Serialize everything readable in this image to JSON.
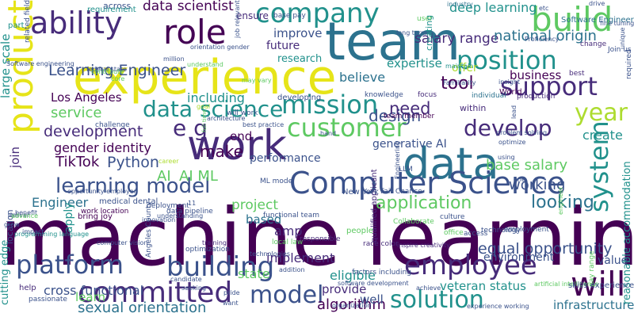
{
  "colors": {
    "background": "#ffffff",
    "palette": [
      "#440154",
      "#472c7a",
      "#3b528b",
      "#2c728e",
      "#21918c",
      "#28ae80",
      "#5ec962",
      "#addc30",
      "#e6e419"
    ]
  },
  "words": [
    {
      "text": "machine learning",
      "color": "#440154"
    },
    {
      "text": "experience",
      "color": "#e6e419"
    },
    {
      "text": "team",
      "color": "#2c728e"
    },
    {
      "text": "work",
      "color": "#472c7a"
    },
    {
      "text": "data",
      "color": "#2c728e"
    },
    {
      "text": "Computer Science",
      "color": "#3b528b"
    },
    {
      "text": "company",
      "color": "#21918c"
    },
    {
      "text": "product",
      "color": "#e6e419"
    },
    {
      "text": "build",
      "color": "#5ec962"
    },
    {
      "text": "customer",
      "color": "#5ec962"
    },
    {
      "text": "position",
      "color": "#21918c"
    },
    {
      "text": "ability",
      "color": "#472c7a"
    },
    {
      "text": "role",
      "color": "#440154"
    },
    {
      "text": "mission",
      "color": "#21918c"
    },
    {
      "text": "support",
      "color": "#472c7a"
    },
    {
      "text": "system",
      "color": "#21918c"
    },
    {
      "text": "will",
      "color": "#440154"
    },
    {
      "text": "building",
      "color": "#3b528b"
    },
    {
      "text": "employee",
      "color": "#472c7a"
    },
    {
      "text": "model",
      "color": "#3b528b"
    },
    {
      "text": "solution",
      "color": "#21918c"
    },
    {
      "text": "committed",
      "color": "#472c7a"
    },
    {
      "text": "platform",
      "color": "#3b528b"
    },
    {
      "text": "data science",
      "color": "#21918c"
    },
    {
      "text": "develop",
      "color": "#472c7a"
    },
    {
      "text": "year",
      "color": "#addc30"
    },
    {
      "text": "e g",
      "color": "#472c7a"
    },
    {
      "text": "learning model",
      "color": "#3b528b"
    },
    {
      "text": "application",
      "color": "#5ec962"
    },
    {
      "text": "looking",
      "color": "#2c728e"
    },
    {
      "text": "sexual orientation",
      "color": "#2c728e"
    },
    {
      "text": "Learning Engineer",
      "color": "#3b528b"
    },
    {
      "text": "salary range",
      "color": "#472c7a"
    },
    {
      "text": "national origin",
      "color": "#2c728e"
    },
    {
      "text": "deep learning",
      "color": "#21918c"
    },
    {
      "text": "data scientist",
      "color": "#440154"
    },
    {
      "text": "tool",
      "color": "#440154"
    },
    {
      "text": "development",
      "color": "#472c7a"
    },
    {
      "text": "design",
      "color": "#3b528b"
    },
    {
      "text": "equal opportunity",
      "color": "#3b528b"
    },
    {
      "text": "base salary",
      "color": "#5ec962"
    },
    {
      "text": "working",
      "color": "#3b528b"
    },
    {
      "text": "need",
      "color": "#472c7a"
    },
    {
      "text": "make",
      "color": "#440154"
    },
    {
      "text": "Python",
      "color": "#3b528b"
    },
    {
      "text": "AI ML",
      "color": "#5ec962"
    },
    {
      "text": "AI",
      "color": "#5ec962"
    },
    {
      "text": "TikTok",
      "color": "#440154"
    },
    {
      "text": "project",
      "color": "#5ec962"
    },
    {
      "text": "algorithm",
      "color": "#440154"
    },
    {
      "text": "cross functional",
      "color": "#3b528b"
    },
    {
      "text": "veteran status",
      "color": "#21918c"
    },
    {
      "text": "infrastructure",
      "color": "#2c728e"
    },
    {
      "text": "environment",
      "color": "#3b528b"
    },
    {
      "text": "service",
      "color": "#5ec962"
    },
    {
      "text": "gender identity",
      "color": "#440154"
    },
    {
      "text": "Engineer",
      "color": "#2c728e"
    },
    {
      "text": "Los Angeles",
      "color": "#440154"
    },
    {
      "text": "including",
      "color": "#21918c"
    },
    {
      "text": "believe",
      "color": "#2c728e"
    },
    {
      "text": "business",
      "color": "#440154"
    },
    {
      "text": "expertise",
      "color": "#21918c"
    },
    {
      "text": "create",
      "color": "#21918c"
    },
    {
      "text": "generative AI",
      "color": "#3b528b"
    },
    {
      "text": "performance",
      "color": "#3b528b"
    },
    {
      "text": "end",
      "color": "#440154"
    },
    {
      "text": "amp",
      "color": "#472c7a"
    },
    {
      "text": "based",
      "color": "#2c728e"
    },
    {
      "text": "implement",
      "color": "#472c7a"
    },
    {
      "text": "state",
      "color": "#5ec962"
    },
    {
      "text": "eligible",
      "color": "#21918c"
    },
    {
      "text": "provide",
      "color": "#472c7a"
    },
    {
      "text": "well",
      "color": "#3b528b"
    },
    {
      "text": "learn",
      "color": "#5ec962"
    },
    {
      "text": "value",
      "color": "#3b528b"
    },
    {
      "text": "cutting edge",
      "color": "#21918c"
    },
    {
      "text": "large scale",
      "color": "#21918c"
    },
    {
      "text": "reasonable accommodation",
      "color": "#21918c"
    },
    {
      "text": "improve",
      "color": "#3b528b"
    },
    {
      "text": "future",
      "color": "#472c7a"
    },
    {
      "text": "research",
      "color": "#21918c"
    },
    {
      "text": "offer",
      "color": "#addc30"
    },
    {
      "text": "ensure",
      "color": "#472c7a"
    },
    {
      "text": "across",
      "color": "#3b528b"
    },
    {
      "text": "requirement",
      "color": "#21918c"
    },
    {
      "text": "industry",
      "color": "#2c728e"
    },
    {
      "text": "maintain",
      "color": "#21918c"
    },
    {
      "text": "creating",
      "color": "#21918c"
    },
    {
      "text": "developing",
      "color": "#3b528b"
    },
    {
      "text": "within",
      "color": "#472c7a"
    },
    {
      "text": "World",
      "color": "#440154"
    },
    {
      "text": "individual",
      "color": "#2c728e"
    },
    {
      "text": "production",
      "color": "#472c7a"
    },
    {
      "text": "knowledge",
      "color": "#3b528b"
    },
    {
      "text": "focus",
      "color": "#472c7a"
    },
    {
      "text": "base pay",
      "color": "#3b528b"
    },
    {
      "text": "user",
      "color": "#5ec962"
    },
    {
      "text": "long term",
      "color": "#3b528b"
    },
    {
      "text": "required",
      "color": "#3b528b"
    },
    {
      "text": "Software Engineer",
      "color": "#2c728e"
    },
    {
      "text": "drive",
      "color": "#3b528b"
    },
    {
      "text": "Join us",
      "color": "#3b528b"
    },
    {
      "text": "best",
      "color": "#472c7a"
    },
    {
      "text": "change",
      "color": "#472c7a"
    },
    {
      "text": "Proficiency",
      "color": "#3b528b"
    },
    {
      "text": "etc",
      "color": "#3b528b"
    },
    {
      "text": "challenge",
      "color": "#3b528b"
    },
    {
      "text": "team member",
      "color": "#440154"
    },
    {
      "text": "medical dental",
      "color": "#3b528b"
    },
    {
      "text": "work location",
      "color": "#440154"
    },
    {
      "text": "deployment",
      "color": "#3b528b"
    },
    {
      "text": "bring joy",
      "color": "#440154"
    },
    {
      "text": "understanding",
      "color": "#3b528b"
    },
    {
      "text": "functional team",
      "color": "#3b528b"
    },
    {
      "text": "technology",
      "color": "#3b528b"
    },
    {
      "text": "qualified applicant",
      "color": "#472c7a"
    },
    {
      "text": "Collaborate",
      "color": "#5ec962"
    },
    {
      "text": "people",
      "color": "#5ec962"
    },
    {
      "text": "office",
      "color": "#5ec962"
    },
    {
      "text": "access",
      "color": "#3b528b"
    },
    {
      "text": "culture",
      "color": "#3b528b"
    },
    {
      "text": "inspire creativity",
      "color": "#472c7a"
    },
    {
      "text": "race color",
      "color": "#472c7a"
    },
    {
      "text": "local law",
      "color": "#5ec962"
    },
    {
      "text": "responsible",
      "color": "#472c7a"
    },
    {
      "text": "optimization",
      "color": "#3b528b"
    },
    {
      "text": "training",
      "color": "#472c7a"
    },
    {
      "text": "factors including",
      "color": "#3b528b"
    },
    {
      "text": "help",
      "color": "#472c7a"
    },
    {
      "text": "passionate",
      "color": "#3b528b"
    },
    {
      "text": "ML model",
      "color": "#3b528b"
    },
    {
      "text": "New York",
      "color": "#3b528b"
    },
    {
      "text": "Fair Chance",
      "color": "#3b528b"
    },
    {
      "text": "LLM",
      "color": "#3b528b"
    },
    {
      "text": "problem solving",
      "color": "#3b528b"
    },
    {
      "text": "optimize",
      "color": "#3b528b"
    },
    {
      "text": "employment",
      "color": "#3b528b"
    },
    {
      "text": "will work",
      "color": "#3b528b"
    },
    {
      "text": "best practice",
      "color": "#3b528b"
    },
    {
      "text": "opportunity employer",
      "color": "#3b528b"
    },
    {
      "text": "data pipeline",
      "color": "#3b528b"
    },
    {
      "text": "deliver",
      "color": "#3b528b"
    },
    {
      "text": "programming language",
      "color": "#21918c"
    },
    {
      "text": "impact",
      "color": "#3b528b"
    },
    {
      "text": "grow",
      "color": "#3b528b"
    },
    {
      "text": "benefit",
      "color": "#3b528b"
    },
    {
      "text": "location",
      "color": "#3b528b"
    },
    {
      "text": "apply",
      "color": "#21918c"
    },
    {
      "text": "join",
      "color": "#472c7a"
    },
    {
      "text": "part",
      "color": "#21918c"
    },
    {
      "text": "related field",
      "color": "#3b528b"
    },
    {
      "text": "Software engineering",
      "color": "#3b528b"
    },
    {
      "text": "million",
      "color": "#3b528b"
    },
    {
      "text": "federal state",
      "color": "#3b528b"
    },
    {
      "text": "contribute",
      "color": "#5ec962"
    },
    {
      "text": "core",
      "color": "#5ec962"
    },
    {
      "text": "Familiarity",
      "color": "#3b528b"
    },
    {
      "text": "software development",
      "color": "#3b528b"
    },
    {
      "text": "computer vision",
      "color": "#3b528b"
    },
    {
      "text": "Angeles County",
      "color": "#3b528b"
    },
    {
      "text": "organization",
      "color": "#3b528b"
    },
    {
      "text": "experience working",
      "color": "#3b528b"
    },
    {
      "text": "artificial intelligence",
      "color": "#5ec962"
    },
    {
      "text": "pay range",
      "color": "#5ec962"
    },
    {
      "text": "skills experience",
      "color": "#3b528b"
    },
    {
      "text": "one",
      "color": "#3b528b"
    },
    {
      "text": "technologies",
      "color": "#3b528b"
    },
    {
      "text": "innovation",
      "color": "#3b528b"
    },
    {
      "text": "candidate",
      "color": "#3b528b"
    },
    {
      "text": "seeking",
      "color": "#3b528b"
    },
    {
      "text": "pride",
      "color": "#3b528b"
    },
    {
      "text": "addition",
      "color": "#3b528b"
    },
    {
      "text": "job relevant",
      "color": "#3b528b"
    },
    {
      "text": "orientation gender",
      "color": "#3b528b"
    },
    {
      "text": "understand",
      "color": "#5ec962"
    },
    {
      "text": "may vary",
      "color": "#5ec962"
    },
    {
      "text": "goal",
      "color": "#addc30"
    },
    {
      "text": "architecture",
      "color": "#3b528b"
    },
    {
      "text": "hand",
      "color": "#3b528b"
    },
    {
      "text": "insight",
      "color": "#3b528b"
    },
    {
      "text": "lead",
      "color": "#3b528b"
    },
    {
      "text": "full time",
      "color": "#5ec962"
    },
    {
      "text": "unique",
      "color": "#3b528b"
    },
    {
      "text": "fine tuning",
      "color": "#3b528b"
    },
    {
      "text": "Engineering",
      "color": "#3b528b"
    },
    {
      "text": "engineer",
      "color": "#5ec962"
    },
    {
      "text": "want",
      "color": "#3b528b"
    },
    {
      "text": "achieve",
      "color": "#3b528b"
    },
    {
      "text": "using",
      "color": "#3b528b"
    },
    {
      "text": "advance",
      "color": "#5ec962"
    },
    {
      "text": "career",
      "color": "#addc30"
    },
    {
      "text": "11",
      "color": "#3b528b"
    }
  ]
}
